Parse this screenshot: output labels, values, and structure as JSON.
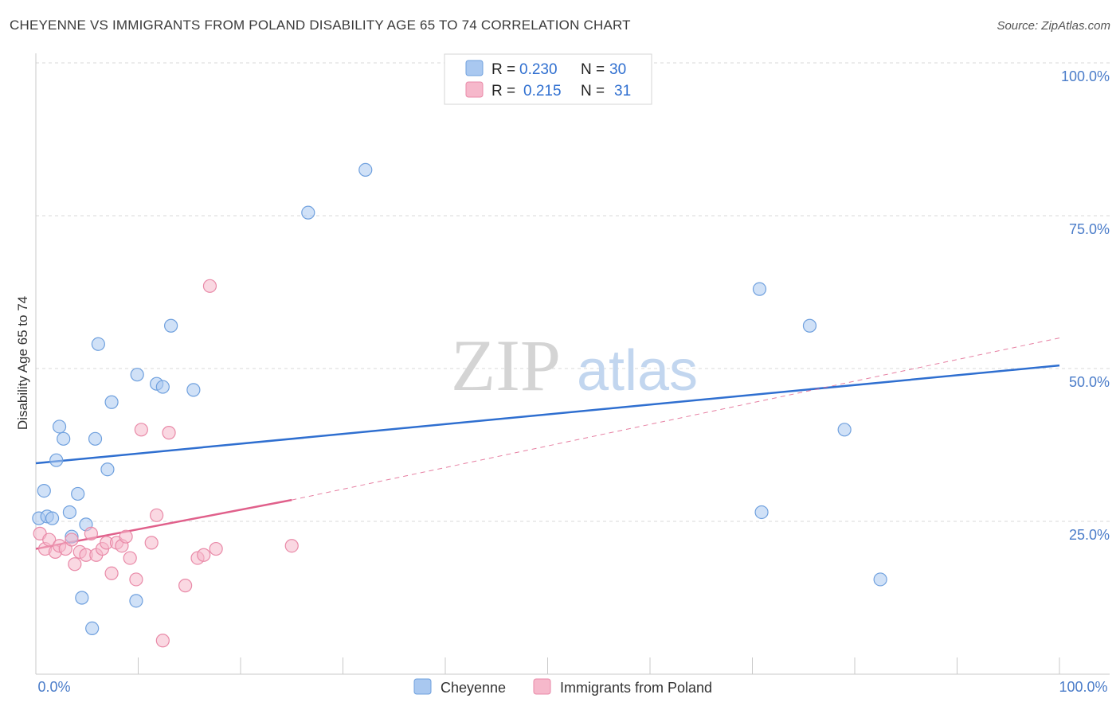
{
  "header": {
    "title": "CHEYENNE VS IMMIGRANTS FROM POLAND DISABILITY AGE 65 TO 74 CORRELATION CHART",
    "source": "Source: ZipAtlas.com"
  },
  "watermark": {
    "zip": "ZIP",
    "atlas": "atlas"
  },
  "colors": {
    "cheyenne_fill": "#a9c8f0",
    "cheyenne_stroke": "#6fa0de",
    "cheyenne_line": "#2f6fd0",
    "poland_fill": "#f6b8cb",
    "poland_stroke": "#e98aa8",
    "poland_line": "#e0608b",
    "grid": "#d9d9d9",
    "tick_text": "#4a7cc9"
  },
  "chart_data": {
    "type": "scatter",
    "title": "CHEYENNE VS IMMIGRANTS FROM POLAND DISABILITY AGE 65 TO 74 CORRELATION CHART",
    "xlabel": "",
    "ylabel": "Disability Age 65 to 74",
    "xlim": [
      0,
      100
    ],
    "ylim": [
      0,
      105
    ],
    "x_tick_labels": [
      "0.0%",
      "100.0%"
    ],
    "y_ticks": [
      25,
      50,
      75,
      100
    ],
    "y_tick_labels": [
      "25.0%",
      "50.0%",
      "75.0%",
      "100.0%"
    ],
    "grid": true,
    "legend_position": "top-center",
    "legend": [
      {
        "name": "Cheyenne",
        "r_label": "R =",
        "r_value": "0.230",
        "n_label": "N =",
        "n_value": "30"
      },
      {
        "name": "Immigrants from Poland",
        "r_label": "R =",
        "r_value": "0.215",
        "n_label": "N =",
        "n_value": "31"
      }
    ],
    "series": [
      {
        "name": "Cheyenne",
        "points": [
          [
            0.3,
            25.5
          ],
          [
            0.8,
            30.0
          ],
          [
            1.1,
            25.8
          ],
          [
            1.6,
            25.5
          ],
          [
            2.0,
            35.0
          ],
          [
            2.3,
            40.5
          ],
          [
            2.7,
            38.5
          ],
          [
            3.3,
            26.5
          ],
          [
            3.5,
            22.5
          ],
          [
            4.1,
            29.5
          ],
          [
            4.5,
            12.5
          ],
          [
            4.9,
            24.5
          ],
          [
            5.5,
            7.5
          ],
          [
            5.8,
            38.5
          ],
          [
            6.1,
            54.0
          ],
          [
            7.0,
            33.5
          ],
          [
            7.4,
            44.5
          ],
          [
            9.8,
            12.0
          ],
          [
            9.9,
            49.0
          ],
          [
            11.8,
            47.5
          ],
          [
            12.4,
            47.0
          ],
          [
            13.2,
            57.0
          ],
          [
            15.4,
            46.5
          ],
          [
            26.6,
            75.5
          ],
          [
            32.2,
            82.5
          ],
          [
            70.7,
            63.0
          ],
          [
            70.9,
            26.5
          ],
          [
            75.6,
            57.0
          ],
          [
            79.0,
            40.0
          ],
          [
            82.5,
            15.5
          ]
        ],
        "trend": {
          "x0": 0,
          "y0": 34.5,
          "x1": 100,
          "y1": 50.5
        }
      },
      {
        "name": "Immigrants from Poland",
        "points": [
          [
            0.4,
            23.0
          ],
          [
            0.9,
            20.5
          ],
          [
            1.3,
            22.0
          ],
          [
            1.9,
            20.0
          ],
          [
            2.3,
            21.0
          ],
          [
            2.9,
            20.5
          ],
          [
            3.5,
            22.0
          ],
          [
            3.8,
            18.0
          ],
          [
            4.3,
            20.0
          ],
          [
            4.9,
            19.5
          ],
          [
            5.4,
            23.0
          ],
          [
            5.9,
            19.5
          ],
          [
            6.5,
            20.5
          ],
          [
            6.9,
            21.5
          ],
          [
            7.4,
            16.5
          ],
          [
            7.9,
            21.5
          ],
          [
            8.4,
            21.0
          ],
          [
            8.8,
            22.5
          ],
          [
            9.2,
            19.0
          ],
          [
            9.8,
            15.5
          ],
          [
            10.3,
            40.0
          ],
          [
            11.3,
            21.5
          ],
          [
            11.8,
            26.0
          ],
          [
            12.4,
            5.5
          ],
          [
            13.0,
            39.5
          ],
          [
            14.6,
            14.5
          ],
          [
            15.8,
            19.0
          ],
          [
            16.4,
            19.5
          ],
          [
            17.0,
            63.5
          ],
          [
            17.6,
            20.5
          ],
          [
            25.0,
            21.0
          ]
        ],
        "trend_solid": {
          "x0": 0,
          "y0": 20.5,
          "x1": 25,
          "y1": 28.5
        },
        "trend_dashed": {
          "x0": 25,
          "y0": 28.5,
          "x1": 100,
          "y1": 55.0
        }
      }
    ]
  }
}
